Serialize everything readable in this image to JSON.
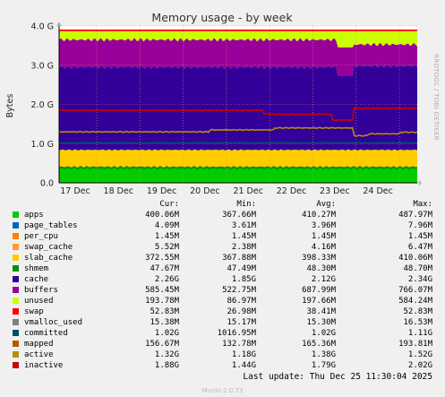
{
  "chart_data": {
    "type": "area",
    "title": "Memory usage - by week",
    "ylabel": "Bytes",
    "ylim": [
      0,
      4
    ],
    "yticks": [
      "0.0",
      "1.0 G",
      "2.0 G",
      "3.0 G",
      "4.0 G"
    ],
    "x_categories": [
      "17 Dec",
      "18 Dec",
      "19 Dec",
      "20 Dec",
      "21 Dec",
      "22 Dec",
      "23 Dec",
      "24 Dec"
    ],
    "grid": true,
    "stack_approx_GB": {
      "slab_top": 0.9,
      "cache_top": 3.0,
      "buffers_top": 3.65,
      "total": 3.9
    },
    "lines_approx_GB": {
      "inactive": 1.85,
      "active": 1.35,
      "committed": 1.02
    },
    "columns": [
      "Cur:",
      "Min:",
      "Avg:",
      "Max:"
    ],
    "series": [
      {
        "name": "apps",
        "color": "#00cc00",
        "cur": "400.06M",
        "min": "367.66M",
        "avg": "410.27M",
        "max": "487.97M"
      },
      {
        "name": "page_tables",
        "color": "#0066b3",
        "cur": "4.09M",
        "min": "3.61M",
        "avg": "3.96M",
        "max": "7.96M"
      },
      {
        "name": "per_cpu",
        "color": "#ff8000",
        "cur": "1.45M",
        "min": "1.45M",
        "avg": "1.45M",
        "max": "1.45M"
      },
      {
        "name": "swap_cache",
        "color": "#ff9933",
        "cur": "5.52M",
        "min": "2.38M",
        "avg": "4.16M",
        "max": "6.47M"
      },
      {
        "name": "slab_cache",
        "color": "#ffcc00",
        "cur": "372.55M",
        "min": "367.88M",
        "avg": "398.33M",
        "max": "410.06M"
      },
      {
        "name": "shmem",
        "color": "#008f00",
        "cur": "47.67M",
        "min": "47.49M",
        "avg": "48.30M",
        "max": "48.70M"
      },
      {
        "name": "cache",
        "color": "#330099",
        "cur": "2.26G",
        "min": "1.85G",
        "avg": "2.12G",
        "max": "2.34G"
      },
      {
        "name": "buffers",
        "color": "#990099",
        "cur": "585.45M",
        "min": "522.75M",
        "avg": "687.99M",
        "max": "766.07M"
      },
      {
        "name": "unused",
        "color": "#ccff00",
        "cur": "193.78M",
        "min": "86.97M",
        "avg": "197.66M",
        "max": "584.24M"
      },
      {
        "name": "swap",
        "color": "#ff0000",
        "cur": "52.83M",
        "min": "26.98M",
        "avg": "38.41M",
        "max": "52.83M"
      },
      {
        "name": "vmalloc_used",
        "color": "#808080",
        "cur": "15.38M",
        "min": "15.17M",
        "avg": "15.30M",
        "max": "16.53M"
      },
      {
        "name": "committed",
        "color": "#004d70",
        "cur": "1.02G",
        "min": "1016.95M",
        "avg": "1.02G",
        "max": "1.11G"
      },
      {
        "name": "mapped",
        "color": "#b35a00",
        "cur": "156.67M",
        "min": "132.78M",
        "avg": "165.36M",
        "max": "193.81M"
      },
      {
        "name": "active",
        "color": "#b38f00",
        "cur": "1.32G",
        "min": "1.18G",
        "avg": "1.38G",
        "max": "1.52G"
      },
      {
        "name": "inactive",
        "color": "#cc0000",
        "cur": "1.88G",
        "min": "1.44G",
        "avg": "1.79G",
        "max": "2.02G"
      }
    ]
  },
  "side_text": "RRDTOOL / TOBI OETIKER",
  "last_update": "Last update: Thu Dec 25 11:30:04 2025",
  "munin_version": "Munin 2.0.73"
}
